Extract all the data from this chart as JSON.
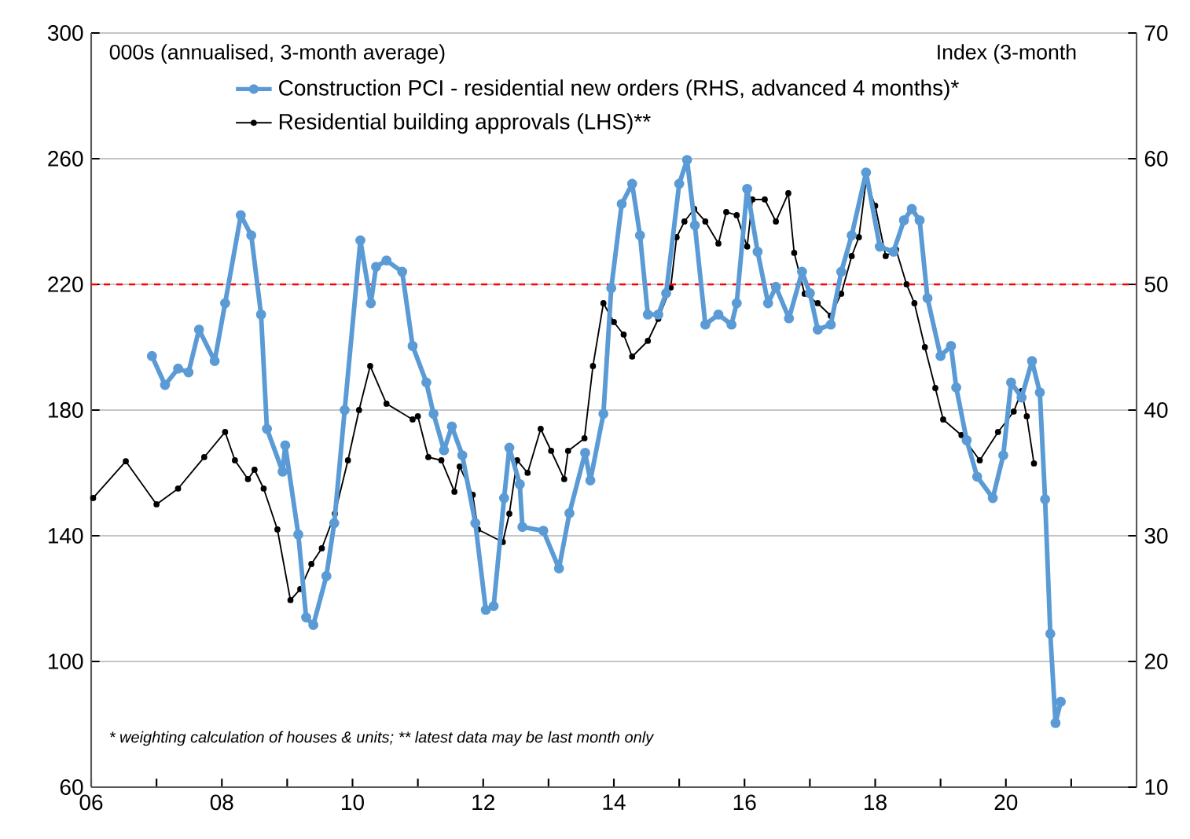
{
  "chart_data": {
    "type": "line",
    "ylabel": "000s (annualised, 3-month average)",
    "y2label": "Index (3-month",
    "annotations": [
      "* weighting calculation of houses & units; ** latest data may be last month only"
    ],
    "xlim": [
      2006,
      2022
    ],
    "xticks": [
      {
        "value": 2006,
        "label": "06"
      },
      {
        "value": 2007,
        "label": null
      },
      {
        "value": 2008,
        "label": "08"
      },
      {
        "value": 2009,
        "label": null
      },
      {
        "value": 2010,
        "label": "10"
      },
      {
        "value": 2011,
        "label": null
      },
      {
        "value": 2012,
        "label": "12"
      },
      {
        "value": 2013,
        "label": null
      },
      {
        "value": 2014,
        "label": "14"
      },
      {
        "value": 2015,
        "label": null
      },
      {
        "value": 2016,
        "label": "16"
      },
      {
        "value": 2017,
        "label": null
      },
      {
        "value": 2018,
        "label": "18"
      },
      {
        "value": 2019,
        "label": null
      },
      {
        "value": 2020,
        "label": "20"
      },
      {
        "value": 2021,
        "label": null
      }
    ],
    "ylim": [
      60,
      300
    ],
    "yticks": [
      60,
      100,
      140,
      180,
      220,
      260,
      300
    ],
    "y2lim": [
      10,
      70
    ],
    "y2ticks": [
      10,
      20,
      30,
      40,
      50,
      60,
      70
    ],
    "grid": "y",
    "legend": "top",
    "marker": "circle",
    "line_style": "solid",
    "ref_lines": [
      {
        "axis": "y2",
        "value": 50,
        "label": null,
        "color": "#ff0000",
        "line_style": "dashed"
      }
    ],
    "series": [
      {
        "name": "Construction PCI - residential new orders (RHS, advanced 4 months)*",
        "color": "#5b9bd5",
        "axis": "y2",
        "x": [
          2006.93,
          2007.13,
          2007.33,
          2007.49,
          2007.65,
          2007.89,
          2008.05,
          2008.29,
          2008.45,
          2008.6,
          2008.69,
          2008.93,
          2008.97,
          2009.17,
          2009.29,
          2009.4,
          2009.6,
          2009.72,
          2009.88,
          2010.12,
          2010.28,
          2010.36,
          2010.52,
          2010.76,
          2010.92,
          2011.13,
          2011.24,
          2011.4,
          2011.52,
          2011.68,
          2011.88,
          2012.04,
          2012.16,
          2012.32,
          2012.4,
          2012.56,
          2012.6,
          2012.92,
          2013.16,
          2013.32,
          2013.56,
          2013.64,
          2013.84,
          2013.96,
          2014.12,
          2014.28,
          2014.4,
          2014.52,
          2014.68,
          2014.8,
          2015.0,
          2015.12,
          2015.24,
          2015.4,
          2015.6,
          2015.8,
          2015.88,
          2016.04,
          2016.2,
          2016.36,
          2016.48,
          2016.68,
          2016.88,
          2017.0,
          2017.12,
          2017.32,
          2017.48,
          2017.64,
          2017.86,
          2018.07,
          2018.28,
          2018.44,
          2018.56,
          2018.68,
          2018.8,
          2019.0,
          2019.16,
          2019.24,
          2019.4,
          2019.56,
          2019.8,
          2019.96,
          2020.08,
          2020.24,
          2020.4,
          2020.52,
          2020.6,
          2020.68,
          2020.76,
          2020.84
        ],
        "values": [
          44.3,
          42,
          43.3,
          43,
          46.4,
          43.9,
          48.5,
          55.5,
          53.9,
          47.6,
          38.5,
          35.1,
          37.2,
          30.1,
          23.5,
          22.9,
          26.8,
          31,
          40,
          53.5,
          48.5,
          51.4,
          51.9,
          51,
          45.1,
          42.2,
          39.7,
          36.8,
          38.7,
          36.4,
          31,
          24.1,
          24.4,
          33,
          37,
          34.1,
          30.7,
          30.4,
          27.4,
          31.8,
          36.6,
          34.4,
          39.7,
          49.7,
          56.4,
          58,
          53.9,
          47.6,
          47.6,
          49.3,
          58,
          59.9,
          54.7,
          46.8,
          47.6,
          46.8,
          48.5,
          57.6,
          52.6,
          48.5,
          49.8,
          47.3,
          51,
          49.3,
          46.4,
          46.8,
          51,
          53.9,
          58.9,
          53,
          52.6,
          55.1,
          56,
          55.1,
          48.9,
          44.3,
          45.1,
          41.8,
          37.6,
          34.7,
          33,
          36.4,
          42.2,
          41,
          43.9,
          41.4,
          32.9,
          22.2,
          15.1,
          16.8
        ]
      },
      {
        "name": "Residential building approvals (LHS)**",
        "color": "#000000",
        "x": [
          2006.03,
          2006.53,
          2007.0,
          2007.33,
          2007.73,
          2008.05,
          2008.2,
          2008.4,
          2008.5,
          2008.64,
          2008.85,
          2009.05,
          2009.2,
          2009.37,
          2009.53,
          2009.73,
          2009.93,
          2010.1,
          2010.27,
          2010.52,
          2010.92,
          2011.0,
          2011.16,
          2011.36,
          2011.56,
          2011.64,
          2011.84,
          2011.92,
          2012.3,
          2012.4,
          2012.52,
          2012.68,
          2012.88,
          2013.04,
          2013.24,
          2013.3,
          2013.55,
          2013.68,
          2013.84,
          2014.0,
          2014.15,
          2014.28,
          2014.52,
          2014.68,
          2014.87,
          2014.96,
          2015.08,
          2015.23,
          2015.4,
          2015.6,
          2015.72,
          2015.88,
          2016.04,
          2016.12,
          2016.31,
          2016.48,
          2016.67,
          2016.76,
          2016.92,
          2017.12,
          2017.32,
          2017.48,
          2017.64,
          2017.75,
          2017.86,
          2018.0,
          2018.16,
          2018.32,
          2018.48,
          2018.6,
          2018.76,
          2018.92,
          2019.04,
          2019.32,
          2019.6,
          2019.88,
          2020.12,
          2020.24,
          2020.32,
          2020.43
        ],
        "values": [
          152,
          163.7,
          150,
          155,
          165,
          173,
          164,
          158,
          161,
          155,
          142,
          119.5,
          123,
          131,
          136,
          147,
          164,
          180,
          194,
          182,
          177,
          178,
          165,
          164,
          154,
          162,
          153,
          142,
          138,
          147,
          164,
          160,
          174,
          167,
          158,
          167,
          171,
          194,
          214,
          208,
          204,
          197,
          202,
          209,
          219,
          235,
          240,
          244,
          240,
          233,
          243,
          242,
          232,
          247,
          247,
          240,
          249,
          230,
          217,
          214,
          210,
          217,
          229,
          235,
          253,
          245,
          229,
          231,
          220,
          214,
          200,
          187,
          177,
          172,
          164,
          173,
          179.5,
          186,
          178,
          163
        ]
      }
    ]
  }
}
